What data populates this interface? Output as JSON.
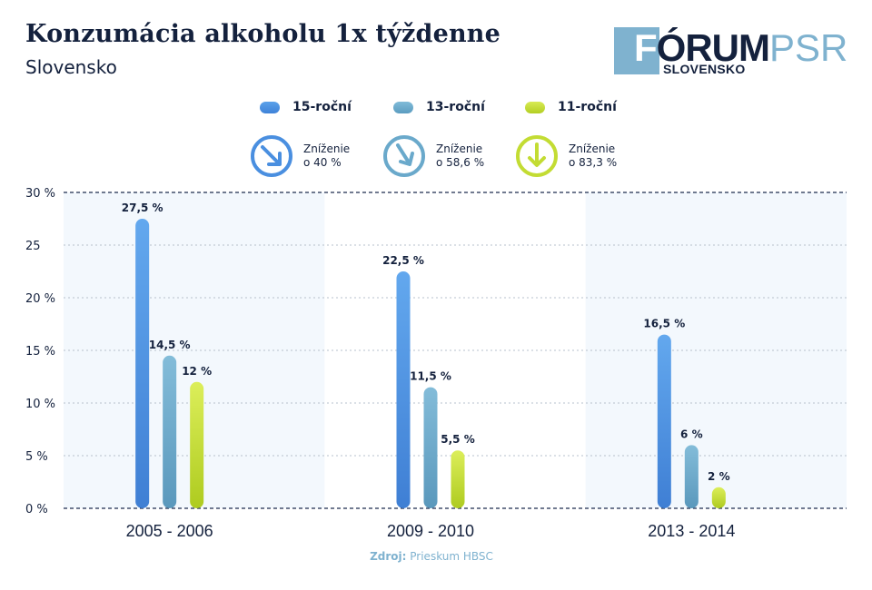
{
  "header": {
    "title": "Konzumácia alkoholu 1x týždenne",
    "subtitle": "Slovensko"
  },
  "logo": {
    "main": "ÓRUM",
    "accent": "PSR",
    "sub": "SLOVENSKO",
    "letter": "F"
  },
  "legend": [
    {
      "label": "15-roční",
      "color": "#4a8fe0"
    },
    {
      "label": "13-roční",
      "color": "#6aa9cb"
    },
    {
      "label": "11-roční",
      "color": "#c3dc33"
    }
  ],
  "reductions": [
    {
      "line1": "Zníženie",
      "line2": "o 40 %",
      "color": "#4a8fe0",
      "icon": "arrow-down-right-circle-icon"
    },
    {
      "line1": "Zníženie",
      "line2": "o 58,6 %",
      "color": "#6aa9cb",
      "icon": "arrow-down-right-circle-icon"
    },
    {
      "line1": "Zníženie",
      "line2": "o 83,3 %",
      "color": "#c3dc33",
      "icon": "arrow-down-circle-icon"
    }
  ],
  "chart_data": {
    "type": "bar",
    "categories": [
      "2005 - 2006",
      "2009 - 2010",
      "2013 - 2014"
    ],
    "series": [
      {
        "name": "15-roční",
        "values": [
          27.5,
          22.5,
          16.5
        ],
        "labels": [
          "27,5 %",
          "22,5 %",
          "16,5 %"
        ],
        "color": "#4a8fe0"
      },
      {
        "name": "13-roční",
        "values": [
          14.5,
          11.5,
          6
        ],
        "labels": [
          "14,5 %",
          "11,5 %",
          "6 %"
        ],
        "color": "#6aa9cb"
      },
      {
        "name": "11-roční",
        "values": [
          12,
          5.5,
          2
        ],
        "labels": [
          "12 %",
          "5,5 %",
          "2 %"
        ],
        "color": "#c3dc33"
      }
    ],
    "ylim": [
      0,
      30
    ],
    "yticks": [
      0,
      5,
      10,
      15,
      20,
      25,
      30
    ],
    "ytick_labels": [
      "0 %",
      "5 %",
      "10 %",
      "15 %",
      "20 %",
      "25",
      "30 %"
    ],
    "grid": true,
    "legend_position": "top"
  },
  "source": {
    "label": "Zdroj:",
    "text": "Prieskum HBSC"
  }
}
